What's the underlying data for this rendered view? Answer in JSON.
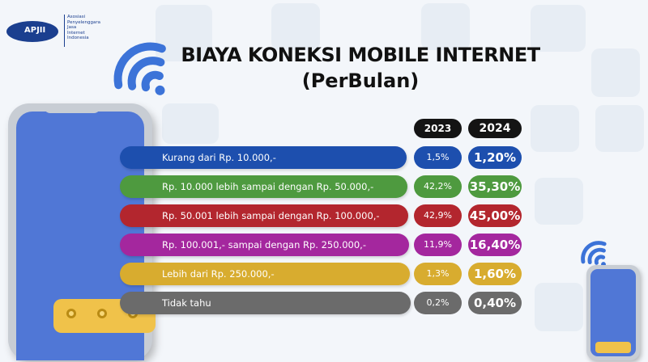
{
  "logo": {
    "mark": "APJII",
    "org_lines": [
      "Asosiasi",
      "Penyelenggara",
      "Jasa",
      "Internet",
      "Indonesia"
    ]
  },
  "chart_data": {
    "type": "table",
    "title": "BIAYA KONEKSI MOBILE INTERNET",
    "subtitle": "(PerBulan)",
    "columns": [
      "2023",
      "2024"
    ],
    "rows": [
      {
        "label": "Kurang dari Rp. 10.000,-",
        "v2023": "1,5%",
        "v2024": "1,20%",
        "color": "#1d4fae"
      },
      {
        "label": "Rp. 10.000 lebih sampai dengan Rp. 50.000,-",
        "v2023": "42,2%",
        "v2024": "35,30%",
        "color": "#4e9a3f"
      },
      {
        "label": "Rp. 50.001 lebih sampai dengan Rp. 100.000,-",
        "v2023": "42,9%",
        "v2024": "45,00%",
        "color": "#b3262e"
      },
      {
        "label": "Rp. 100.001,- sampai dengan Rp. 250.000,-",
        "v2023": "11,9%",
        "v2024": "16,40%",
        "color": "#a4279e"
      },
      {
        "label": "Lebih dari Rp. 250.000,-",
        "v2023": "1,3%",
        "v2024": "1,60%",
        "color": "#d8ac2f"
      },
      {
        "label": "Tidak tahu",
        "v2023": "0,2%",
        "v2024": "0,40%",
        "color": "#6b6b6b"
      }
    ]
  },
  "icons": {
    "wifi": "wifi-icon",
    "phone": "smartphone-icon"
  }
}
